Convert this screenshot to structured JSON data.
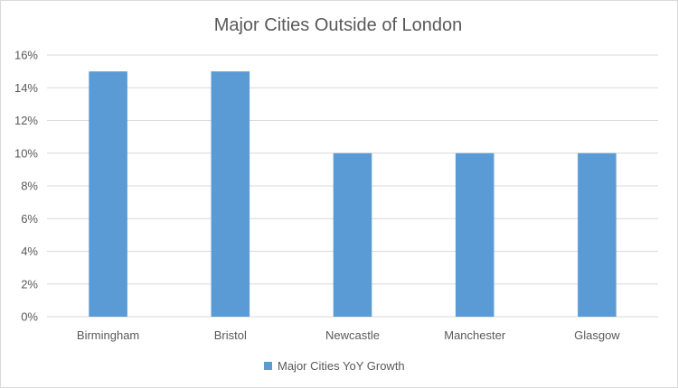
{
  "chart_data": {
    "type": "bar",
    "title": "Major Cities Outside of London",
    "categories": [
      "Birmingham",
      "Bristol",
      "Newcastle",
      "Manchester",
      "Glasgow"
    ],
    "series": [
      {
        "name": "Major Cities YoY Growth",
        "values": [
          0.15,
          0.15,
          0.1,
          0.1,
          0.1
        ],
        "color": "#5b9bd5"
      }
    ],
    "ylim": [
      0,
      0.16
    ],
    "yticks": [
      "0%",
      "2%",
      "4%",
      "6%",
      "8%",
      "10%",
      "12%",
      "14%",
      "16%"
    ],
    "grid": true,
    "legend": "bottom"
  }
}
